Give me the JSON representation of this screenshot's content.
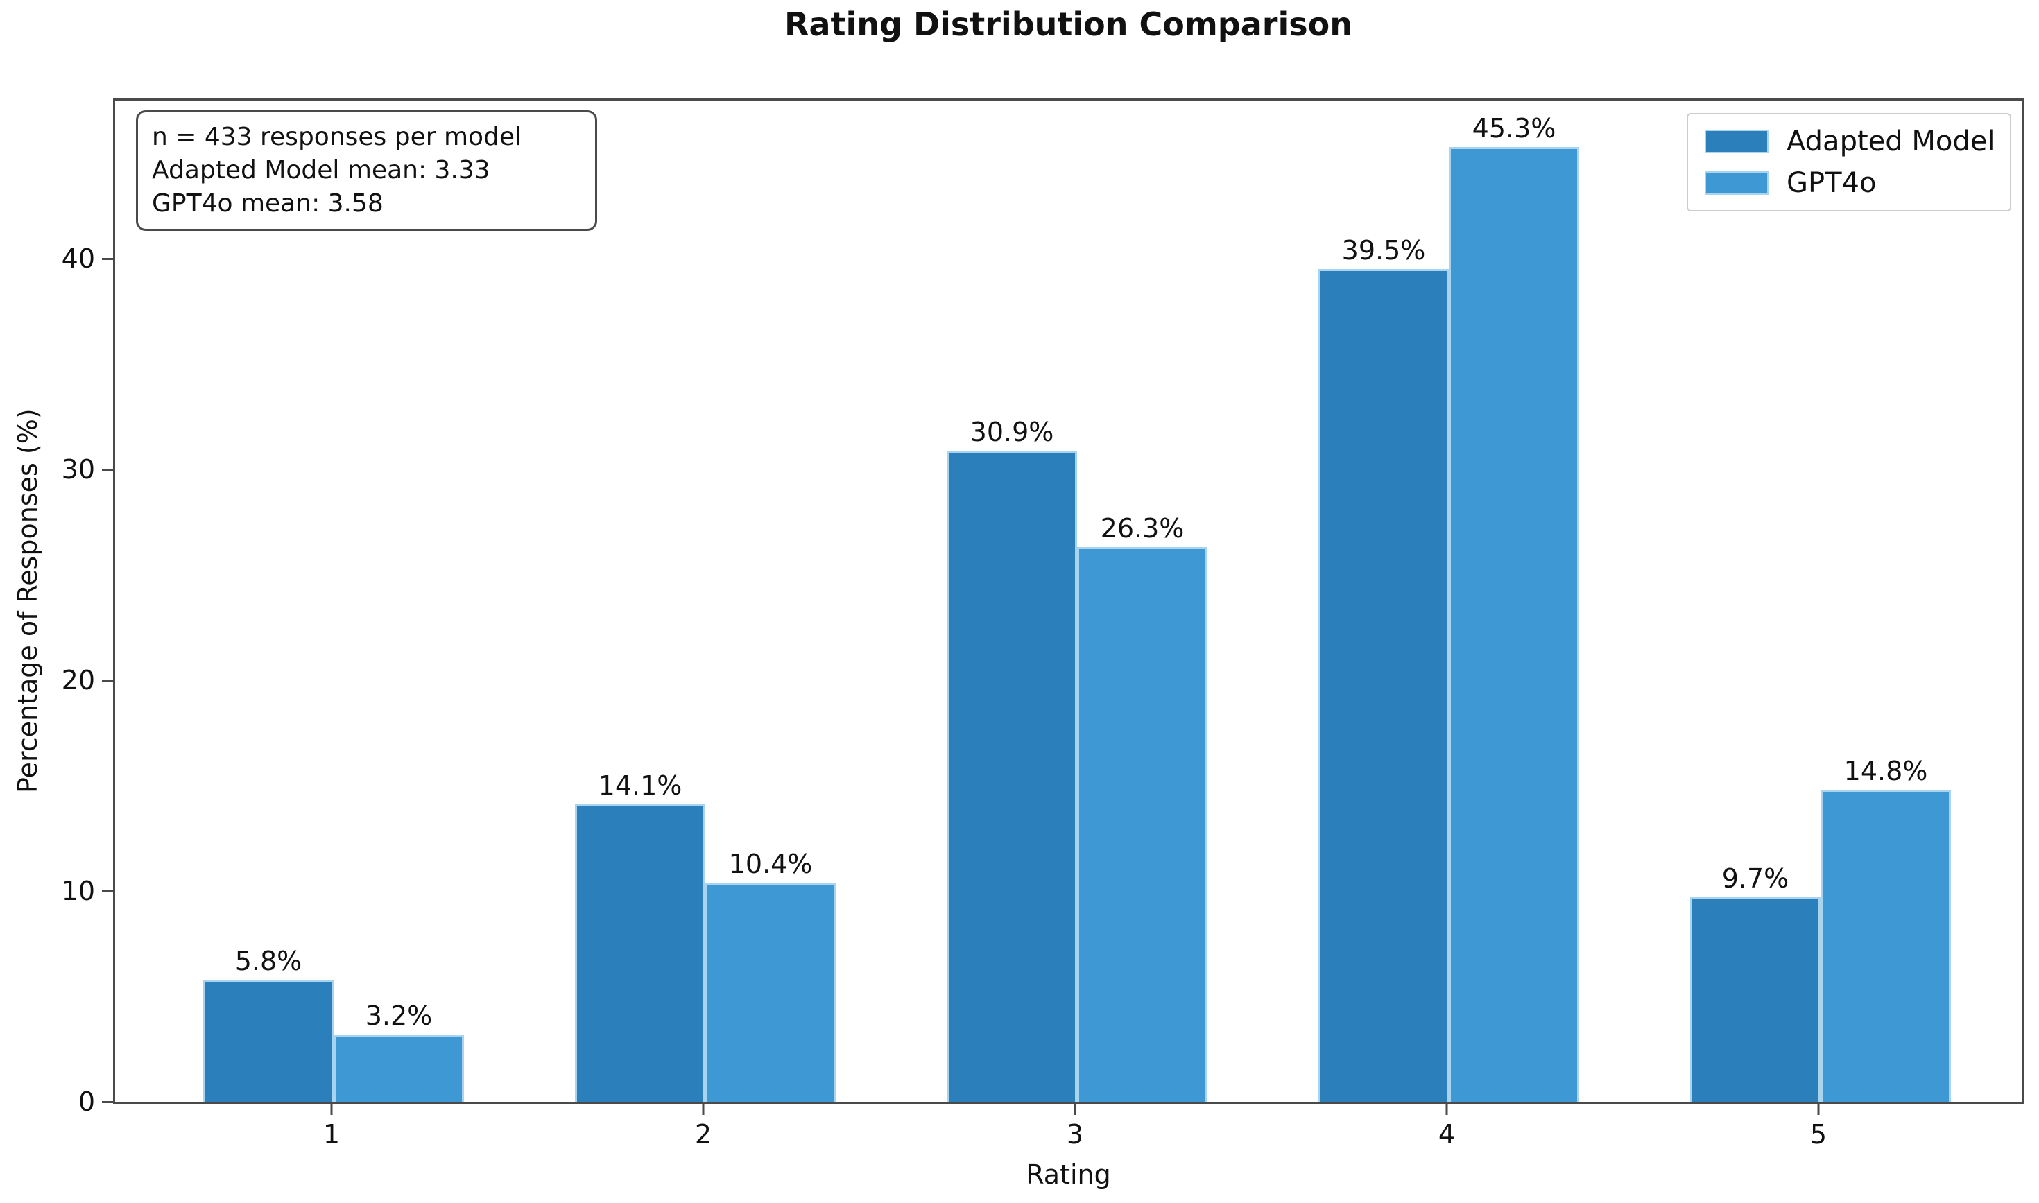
{
  "chart_data": {
    "type": "bar",
    "title": "Rating Distribution Comparison",
    "xlabel": "Rating",
    "ylabel": "Percentage of Responses (%)",
    "categories": [
      "1",
      "2",
      "3",
      "4",
      "5"
    ],
    "series": [
      {
        "name": "Adapted Model",
        "values": [
          5.8,
          14.1,
          30.9,
          39.5,
          9.7
        ],
        "labels": [
          "5.8%",
          "14.1%",
          "30.9%",
          "39.5%",
          "9.7%"
        ],
        "color": "#2b80bc"
      },
      {
        "name": "GPT4o",
        "values": [
          3.2,
          10.4,
          26.3,
          45.3,
          14.8
        ],
        "labels": [
          "3.2%",
          "10.4%",
          "26.3%",
          "45.3%",
          "14.8%"
        ],
        "color": "#3d98d4"
      }
    ],
    "bar_edge_color": "#a9d4ef",
    "yticks": [
      {
        "value": 0,
        "label": "0"
      },
      {
        "value": 10,
        "label": "10"
      },
      {
        "value": 20,
        "label": "20"
      },
      {
        "value": 30,
        "label": "30"
      },
      {
        "value": 40,
        "label": "40"
      }
    ],
    "ylim": [
      0,
      47.5
    ],
    "grid": false,
    "legend_position": "upper right",
    "annotation": {
      "lines": [
        "n = 433 responses per model",
        "Adapted Model mean: 3.33",
        "GPT4o mean: 3.58"
      ]
    }
  }
}
